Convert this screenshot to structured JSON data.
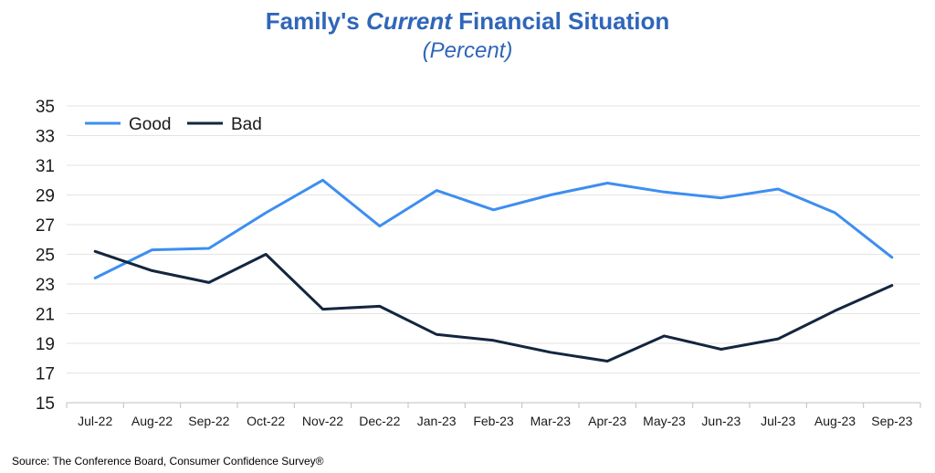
{
  "chart_data": {
    "type": "line",
    "title_parts": [
      "Family's ",
      "Current",
      " Financial Situation"
    ],
    "subtitle": "(Percent)",
    "source": "Source: The Conference Board, Consumer Confidence  Survey®",
    "categories": [
      "Jul-22",
      "Aug-22",
      "Sep-22",
      "Oct-22",
      "Nov-22",
      "Dec-22",
      "Jan-23",
      "Feb-23",
      "Mar-23",
      "Apr-23",
      "May-23",
      "Jun-23",
      "Jul-23",
      "Aug-23",
      "Sep-23"
    ],
    "ylim": [
      15,
      35
    ],
    "yticks": [
      15,
      17,
      19,
      21,
      23,
      25,
      27,
      29,
      31,
      33,
      35
    ],
    "grid": true,
    "legend_position": "top-left",
    "series": [
      {
        "name": "Good",
        "color": "#3d8ef0",
        "values": [
          23.4,
          25.3,
          25.4,
          27.8,
          30.0,
          26.9,
          29.3,
          28.0,
          29.0,
          29.8,
          29.2,
          28.8,
          29.4,
          27.8,
          24.8
        ]
      },
      {
        "name": "Bad",
        "color": "#13263f",
        "values": [
          25.2,
          23.9,
          23.1,
          25.0,
          21.3,
          21.5,
          19.6,
          19.2,
          18.4,
          17.8,
          19.5,
          18.6,
          19.3,
          21.2,
          22.9
        ]
      }
    ]
  }
}
